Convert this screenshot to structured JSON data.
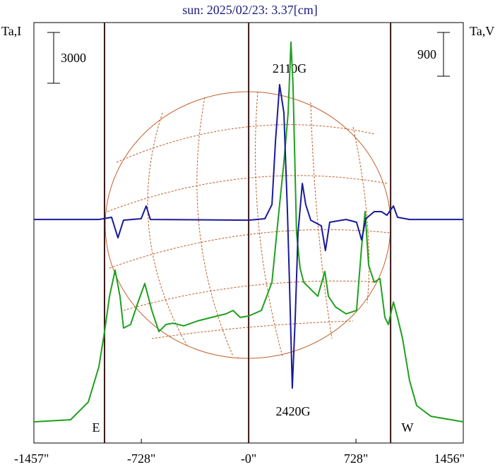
{
  "chart_data": {
    "type": "line",
    "title": "sun: 2025/02/23: 3.37[cm]",
    "y_label": "Ta,I",
    "y2_label": "Ta,V",
    "xlim": [
      -1457,
      1456
    ],
    "xticks": [
      {
        "value": -1457,
        "label": "-1457\""
      },
      {
        "value": -728,
        "label": "-728\""
      },
      {
        "value": 0,
        "label": "-0\""
      },
      {
        "value": 728,
        "label": "728\""
      },
      {
        "value": 1456,
        "label": "1456\""
      }
    ],
    "ylim": [
      -1250,
      23580
    ],
    "y2lim": [
      -4600,
      4050
    ],
    "limb_lines": [
      -978,
      963
    ],
    "scale_bars": [
      {
        "value": 3000,
        "axis": "y"
      },
      {
        "value": 900,
        "axis": "y2"
      }
    ],
    "annotations": [
      "2110G",
      "2420G",
      "E",
      "W"
    ],
    "series": [
      {
        "color": "#1fa01f",
        "x": [
          -1457,
          -1208,
          -1088,
          -1016,
          -978,
          -944,
          -906,
          -873,
          -849,
          -801,
          -753,
          -705,
          -657,
          -609,
          -561,
          -513,
          -441,
          -346,
          -250,
          -154,
          -106,
          -58,
          0,
          86,
          158,
          205,
          239,
          268,
          287,
          301,
          325,
          349,
          373,
          421,
          469,
          517,
          541,
          589,
          661,
          732,
          766,
          790,
          814,
          852,
          891,
          924,
          948,
          982,
          1010,
          1044,
          1092,
          1140,
          1236,
          1456
        ],
        "values": [
          0,
          125,
          1170,
          3250,
          5330,
          7420,
          8960,
          7420,
          5540,
          5750,
          7000,
          8170,
          6580,
          5330,
          5750,
          5830,
          5670,
          5960,
          6170,
          6380,
          6580,
          6170,
          6250,
          6580,
          8250,
          12420,
          15330,
          18250,
          22420,
          19920,
          11170,
          9080,
          8250,
          7830,
          7420,
          8880,
          7420,
          6790,
          6380,
          6580,
          10330,
          12420,
          9250,
          8250,
          8460,
          6170,
          5750,
          7080,
          6170,
          4920,
          2420,
          960,
          330,
          0
        ]
      },
      {
        "color": "#1a1a9a",
        "axis": "y2",
        "x": [
          -1457,
          -1016,
          -930,
          -887,
          -849,
          -729,
          -695,
          -667,
          0,
          110,
          158,
          182,
          210,
          239,
          263,
          277,
          296,
          316,
          335,
          364,
          387,
          421,
          493,
          521,
          550,
          661,
          732,
          766,
          795,
          852,
          900,
          938,
          982,
          1010,
          1092,
          1456
        ],
        "values": [
          0,
          0,
          44,
          -378,
          -15,
          15,
          276,
          0,
          -15,
          15,
          305,
          1612,
          2773,
          2192,
          160,
          -1292,
          -3470,
          -2000,
          -276,
          741,
          305,
          -15,
          -131,
          -639,
          -58,
          0,
          -58,
          -421,
          15,
          160,
          160,
          87,
          276,
          44,
          0,
          0
        ]
      }
    ]
  }
}
